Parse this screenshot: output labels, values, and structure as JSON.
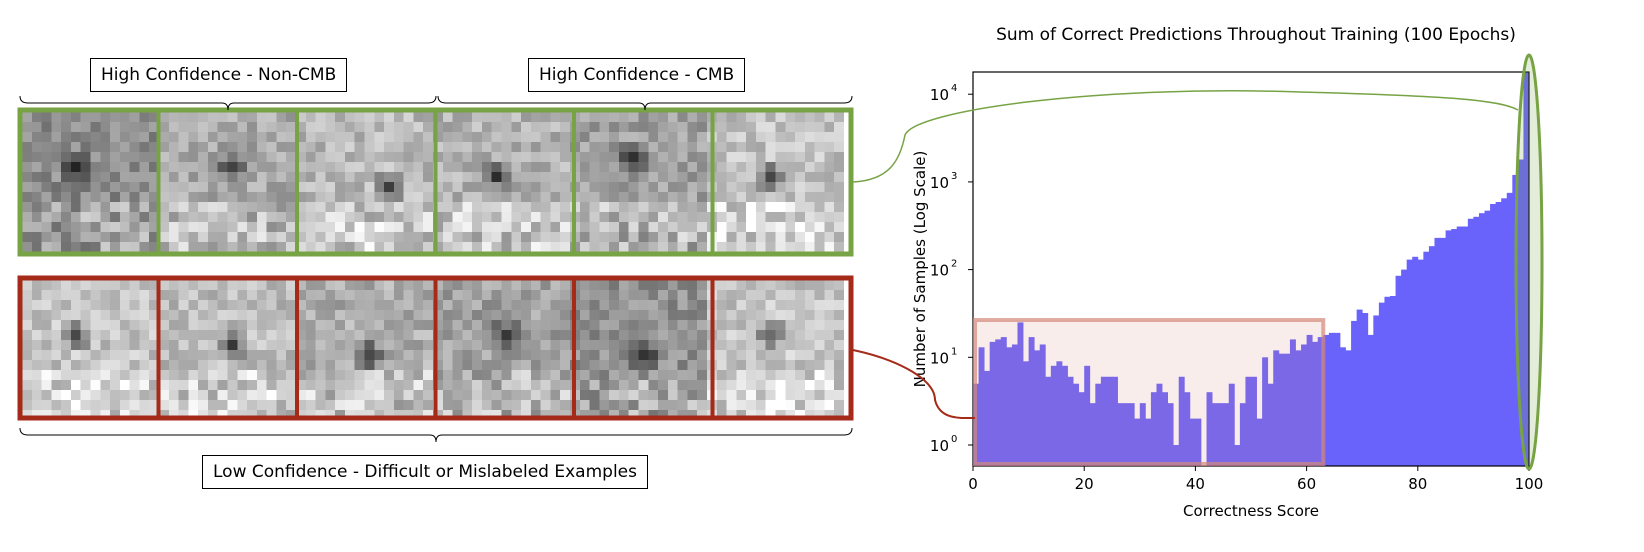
{
  "labels": {
    "top_left": "High Confidence - Non-CMB",
    "top_right": "High Confidence - CMB",
    "bottom": "Low Confidence - Difficult or Mislabeled Examples"
  },
  "colors": {
    "high": "#77a345",
    "low": "#a52a18",
    "bars": "#6a63fb",
    "low_region": "#d4877a"
  },
  "chart_data": {
    "type": "bar",
    "title": "Sum of Correct Predictions Throughout Training (100 Epochs)",
    "xlabel": "Correctness Score",
    "ylabel": "Number of Samples (Log Scale)",
    "xlim": [
      0,
      100
    ],
    "ylim": [
      0.6,
      30000
    ],
    "yscale": "log",
    "xticks": [
      "0",
      "20",
      "40",
      "60",
      "80",
      "100"
    ],
    "yticks": [
      "10",
      "10",
      "10",
      "10",
      "10"
    ],
    "ytick_exponents": [
      "0",
      "1",
      "2",
      "3",
      "4"
    ],
    "bin_width": 1,
    "values": [
      5,
      13,
      7,
      15,
      16,
      17,
      13,
      14,
      25,
      9,
      17,
      12,
      14,
      6,
      8,
      9,
      8,
      6,
      5,
      4,
      8,
      3,
      5,
      6,
      6,
      6,
      3,
      3,
      3,
      2,
      3,
      2,
      4,
      5,
      4,
      3,
      1,
      6,
      4,
      2,
      2,
      0,
      4,
      3,
      3,
      3,
      5,
      1,
      3,
      6,
      6,
      2,
      10,
      5,
      12,
      11,
      11,
      16,
      12,
      14,
      18,
      15,
      17,
      18,
      19,
      19,
      13,
      12,
      26,
      35,
      32,
      18,
      30,
      42,
      49,
      50,
      85,
      100,
      130,
      140,
      130,
      160,
      185,
      230,
      230,
      280,
      290,
      310,
      310,
      380,
      400,
      440,
      470,
      560,
      590,
      650,
      750,
      1200,
      1800,
      19000
    ],
    "highlight_low_range": [
      0,
      63
    ],
    "highlight_high_range": [
      99,
      100
    ]
  }
}
